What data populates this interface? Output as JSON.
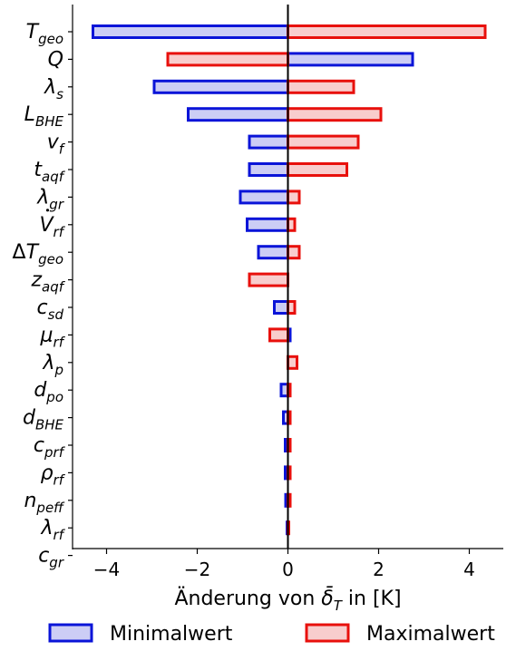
{
  "chart_data": {
    "type": "bar",
    "orientation": "horizontal",
    "categories": [
      {
        "base": "T",
        "sub": "geo",
        "pre": "",
        "dot": false
      },
      {
        "base": "Q",
        "sub": "",
        "pre": "",
        "dot": false
      },
      {
        "base": "λ",
        "sub": "s",
        "pre": "",
        "dot": false
      },
      {
        "base": "L",
        "sub": "BHE",
        "pre": "",
        "dot": false
      },
      {
        "base": "v",
        "sub": "f",
        "pre": "",
        "dot": false
      },
      {
        "base": "t",
        "sub": "aqf",
        "pre": "",
        "dot": false
      },
      {
        "base": "λ",
        "sub": "gr",
        "pre": "",
        "dot": false
      },
      {
        "base": "V",
        "sub": "rf",
        "pre": "",
        "dot": true
      },
      {
        "base": "T",
        "sub": "geo",
        "pre": "Δ",
        "dot": false
      },
      {
        "base": "z",
        "sub": "aqf",
        "pre": "",
        "dot": false
      },
      {
        "base": "c",
        "sub": "sd",
        "pre": "",
        "dot": false
      },
      {
        "base": "μ",
        "sub": "rf",
        "pre": "",
        "dot": false
      },
      {
        "base": "λ",
        "sub": "p",
        "pre": "",
        "dot": false
      },
      {
        "base": "d",
        "sub": "po",
        "pre": "",
        "dot": false
      },
      {
        "base": "d",
        "sub": "BHE",
        "pre": "",
        "dot": false
      },
      {
        "base": "c",
        "sub": "prf",
        "pre": "",
        "dot": false
      },
      {
        "base": "ρ",
        "sub": "rf",
        "pre": "",
        "dot": false
      },
      {
        "base": "n",
        "sub": "peff",
        "pre": "",
        "dot": false
      },
      {
        "base": "λ",
        "sub": "rf",
        "pre": "",
        "dot": false
      },
      {
        "base": "c",
        "sub": "gr",
        "pre": "",
        "dot": false
      }
    ],
    "series": [
      {
        "name": "Minimalwert",
        "values": [
          -4.3,
          2.75,
          -2.95,
          -2.2,
          -0.85,
          -0.85,
          -1.05,
          -0.9,
          -0.65,
          0.0,
          -0.3,
          0.05,
          0.0,
          -0.15,
          -0.1,
          -0.06,
          -0.06,
          -0.05,
          -0.02,
          0.0
        ],
        "fill": "#cccdf5",
        "stroke": "#0a14d8"
      },
      {
        "name": "Maximalwert",
        "values": [
          4.35,
          -2.65,
          1.45,
          2.05,
          1.55,
          1.3,
          0.25,
          0.15,
          0.25,
          -0.85,
          0.15,
          -0.4,
          0.2,
          0.05,
          0.05,
          0.05,
          0.05,
          0.05,
          0.02,
          0.0
        ],
        "fill": "#f8cdcd",
        "stroke": "#e8100c"
      }
    ],
    "xlim": [
      -4.75,
      4.75
    ],
    "xticks": [
      -4,
      -2,
      0,
      2,
      4
    ],
    "xlabel": {
      "pre": "Änderung von ",
      "symbol": "δ̄",
      "sub": "T",
      "post": " in [K]"
    },
    "legend_position": "bottom"
  }
}
